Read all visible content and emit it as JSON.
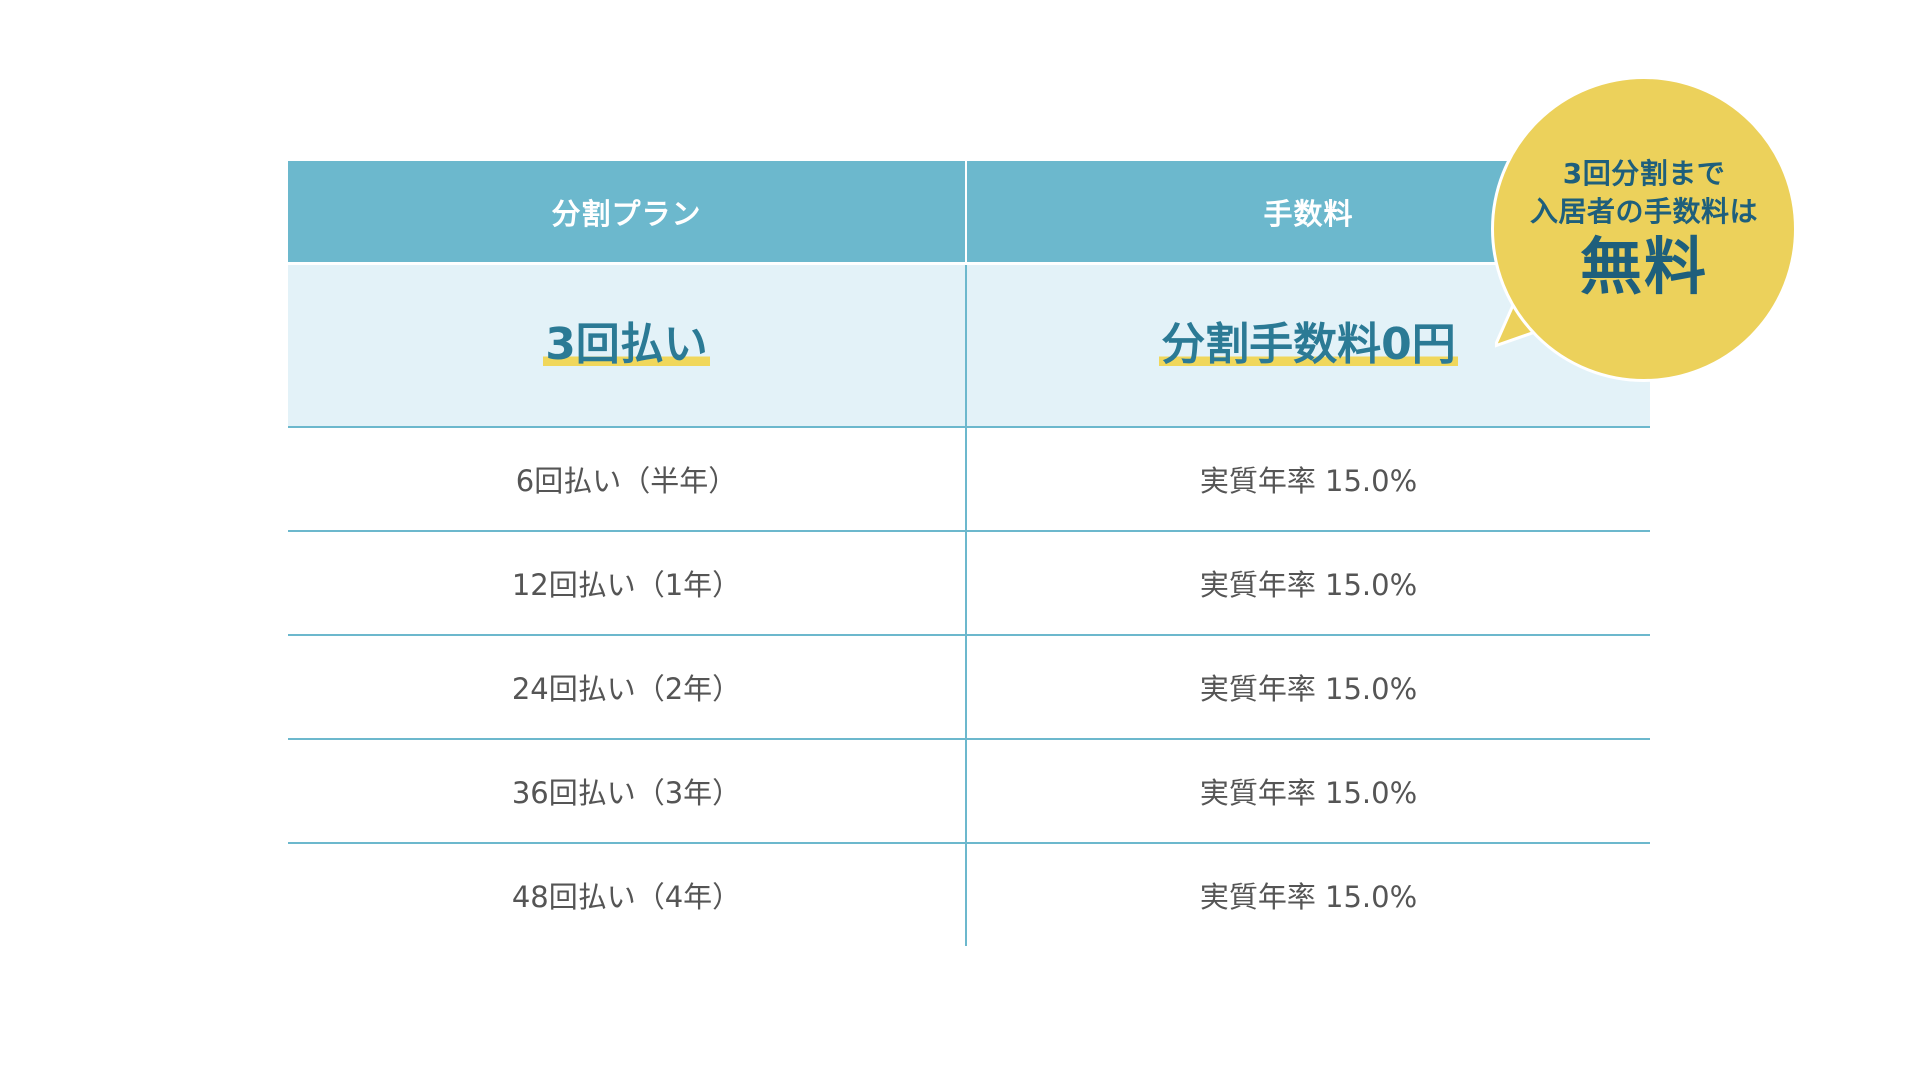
{
  "table": {
    "headers": {
      "plan": "分割プラン",
      "fee": "手数料"
    },
    "highlight": {
      "plan": "3回払い",
      "fee": "分割手数料0円"
    },
    "rows": [
      {
        "plan": "6回払い（半年）",
        "fee": "実質年率 15.0%"
      },
      {
        "plan": "12回払い（1年）",
        "fee": "実質年率 15.0%"
      },
      {
        "plan": "24回払い（2年）",
        "fee": "実質年率 15.0%"
      },
      {
        "plan": "36回払い（3年）",
        "fee": "実質年率 15.0%"
      },
      {
        "plan": "48回払い（4年）",
        "fee": "実質年率 15.0%"
      }
    ]
  },
  "callout": {
    "line1": "3回分割まで",
    "line2": "入居者の手数料は",
    "line3": "無料"
  },
  "colors": {
    "header_bg": "#6cb8cd",
    "highlight_bg": "#e3f2f8",
    "highlight_text": "#2b7a95",
    "marker": "#f0d75b",
    "bubble_bg": "#ecd15b",
    "bubble_text": "#1e5f7c",
    "body_text": "#555555"
  }
}
